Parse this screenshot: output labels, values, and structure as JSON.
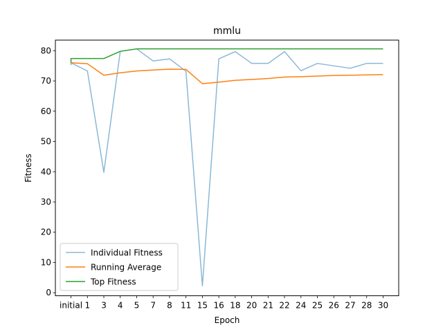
{
  "chart_data": {
    "type": "line",
    "title": "mmlu",
    "xlabel": "Epoch",
    "ylabel": "Fitness",
    "categories": [
      "initial",
      "1",
      "3",
      "4",
      "5",
      "7",
      "8",
      "11",
      "15",
      "16",
      "18",
      "20",
      "21",
      "22",
      "24",
      "25",
      "26",
      "27",
      "28",
      "30"
    ],
    "ylim": [
      -1.0,
      83.5
    ],
    "yticks": [
      0,
      10,
      20,
      30,
      40,
      50,
      60,
      70,
      80
    ],
    "grid": false,
    "legend": "bottom-left",
    "series": [
      {
        "name": "Individual Fitness",
        "color": "#8ab8d6",
        "points": [
          [
            0,
            75.2
          ],
          [
            0,
            76.0
          ],
          [
            1,
            73.3
          ],
          [
            2,
            39.8
          ],
          [
            3,
            79.8
          ],
          [
            4,
            80.6
          ],
          [
            5,
            76.6
          ],
          [
            6,
            77.3
          ],
          [
            7,
            73.2
          ],
          [
            8,
            2.3
          ],
          [
            9,
            77.3
          ],
          [
            10,
            79.7
          ],
          [
            11,
            75.8
          ],
          [
            12,
            75.8
          ],
          [
            13,
            79.7
          ],
          [
            14,
            73.4
          ],
          [
            15,
            75.8
          ],
          [
            16,
            75.0
          ],
          [
            17,
            74.2
          ],
          [
            18,
            75.8
          ],
          [
            19,
            75.8
          ]
        ]
      },
      {
        "name": "Running Average",
        "color": "#ff7f0e",
        "points": [
          [
            0,
            76.0
          ],
          [
            1,
            75.7
          ],
          [
            2,
            71.9
          ],
          [
            3,
            72.7
          ],
          [
            4,
            73.3
          ],
          [
            5,
            73.6
          ],
          [
            6,
            73.9
          ],
          [
            7,
            73.8
          ],
          [
            8,
            69.1
          ],
          [
            9,
            69.6
          ],
          [
            10,
            70.2
          ],
          [
            11,
            70.5
          ],
          [
            12,
            70.8
          ],
          [
            13,
            71.3
          ],
          [
            14,
            71.4
          ],
          [
            15,
            71.6
          ],
          [
            16,
            71.8
          ],
          [
            17,
            71.9
          ],
          [
            18,
            72.0
          ],
          [
            19,
            72.1
          ]
        ]
      },
      {
        "name": "Top Fitness",
        "color": "#2ca02c",
        "points": [
          [
            0,
            76.0
          ],
          [
            0,
            77.4
          ],
          [
            1,
            77.4
          ],
          [
            2,
            77.4
          ],
          [
            3,
            79.8
          ],
          [
            4,
            80.6
          ],
          [
            5,
            80.6
          ],
          [
            6,
            80.6
          ],
          [
            7,
            80.6
          ],
          [
            8,
            80.6
          ],
          [
            9,
            80.6
          ],
          [
            10,
            80.6
          ],
          [
            11,
            80.6
          ],
          [
            12,
            80.6
          ],
          [
            13,
            80.6
          ],
          [
            14,
            80.6
          ],
          [
            15,
            80.6
          ],
          [
            16,
            80.6
          ],
          [
            17,
            80.6
          ],
          [
            18,
            80.6
          ],
          [
            19,
            80.6
          ]
        ]
      }
    ]
  }
}
